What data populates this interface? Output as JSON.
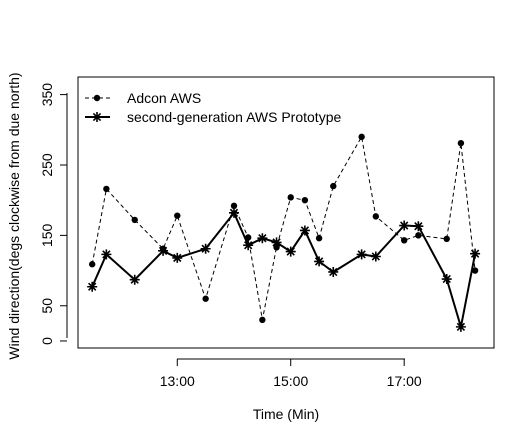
{
  "chart_data": {
    "type": "line",
    "title": "",
    "xlabel": "Time (Min)",
    "ylabel": "Wind direction(degs clockwise from due north)",
    "xlim": [
      "11:15",
      "18:35"
    ],
    "ylim": [
      -10,
      375
    ],
    "xticks": [
      "13:00",
      "15:00",
      "17:00"
    ],
    "yticks": [
      0,
      50,
      150,
      250,
      350
    ],
    "grid": false,
    "legend": "top-left",
    "series": [
      {
        "name": "Adcon AWS",
        "marker": "filled-circle",
        "line": "dashed",
        "color": "#000000",
        "x": [
          "11:30",
          "11:45",
          "12:15",
          "12:45",
          "13:00",
          "13:30",
          "14:00",
          "14:15",
          "14:30",
          "14:45",
          "15:00",
          "15:15",
          "15:30",
          "15:45",
          "16:15",
          "16:30",
          "17:00",
          "17:15",
          "17:45",
          "18:00",
          "18:15"
        ],
        "values": [
          109,
          216,
          172,
          131,
          178,
          60,
          192,
          147,
          30,
          133,
          204,
          200,
          146,
          220,
          290,
          177,
          143,
          150,
          145,
          281,
          100
        ]
      },
      {
        "name": "second-generation AWS Prototype",
        "marker": "asterisk",
        "line": "solid",
        "color": "#000000",
        "x": [
          "11:30",
          "11:45",
          "12:15",
          "12:45",
          "13:00",
          "13:30",
          "14:00",
          "14:15",
          "14:30",
          "14:45",
          "15:00",
          "15:15",
          "15:30",
          "15:45",
          "16:15",
          "16:30",
          "17:00",
          "17:15",
          "17:45",
          "18:00",
          "18:15"
        ],
        "values": [
          77,
          123,
          87,
          128,
          118,
          131,
          182,
          136,
          146,
          140,
          127,
          157,
          113,
          98,
          123,
          120,
          164,
          163,
          88,
          20,
          124
        ]
      }
    ]
  }
}
